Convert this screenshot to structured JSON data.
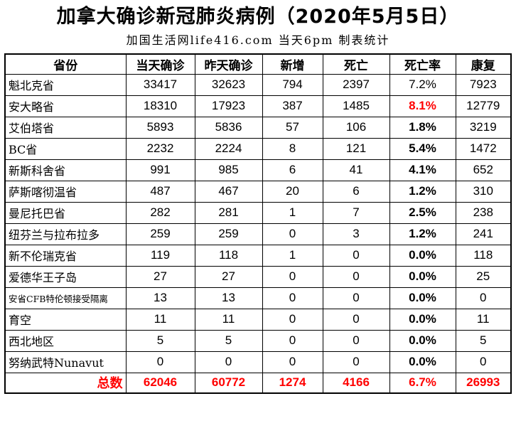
{
  "colors": {
    "accent_red": "#ff0000",
    "border": "#000000",
    "background": "#ffffff"
  },
  "chart_data": {
    "type": "table",
    "title": "加拿大确诊新冠肺炎病例（2020年5月5日）",
    "subtitle": "加国生活网life416.com 当天6pm 制表统计",
    "columns": [
      {
        "key": "province",
        "label": "省份"
      },
      {
        "key": "today",
        "label": "当天确诊"
      },
      {
        "key": "yesterday",
        "label": "昨天确诊"
      },
      {
        "key": "new",
        "label": "新增"
      },
      {
        "key": "deaths",
        "label": "死亡"
      },
      {
        "key": "death_rate",
        "label": "死亡率"
      },
      {
        "key": "recovered",
        "label": "康复"
      }
    ],
    "rows": [
      {
        "province": "魁北克省",
        "today": "33417",
        "yesterday": "32623",
        "new": "794",
        "deaths": "2397",
        "death_rate": "7.2%",
        "recovered": "7923",
        "rate_bold": false,
        "rate_red": false,
        "small_label": false
      },
      {
        "province": "安大略省",
        "today": "18310",
        "yesterday": "17923",
        "new": "387",
        "deaths": "1485",
        "death_rate": "8.1%",
        "recovered": "12779",
        "rate_bold": true,
        "rate_red": true,
        "small_label": false
      },
      {
        "province": "艾伯塔省",
        "today": "5893",
        "yesterday": "5836",
        "new": "57",
        "deaths": "106",
        "death_rate": "1.8%",
        "recovered": "3219",
        "rate_bold": true,
        "rate_red": false,
        "small_label": false
      },
      {
        "province": "BC省",
        "today": "2232",
        "yesterday": "2224",
        "new": "8",
        "deaths": "121",
        "death_rate": "5.4%",
        "recovered": "1472",
        "rate_bold": true,
        "rate_red": false,
        "small_label": false
      },
      {
        "province": "新斯科舍省",
        "today": "991",
        "yesterday": "985",
        "new": "6",
        "deaths": "41",
        "death_rate": "4.1%",
        "recovered": "652",
        "rate_bold": true,
        "rate_red": false,
        "small_label": false
      },
      {
        "province": "萨斯喀彻温省",
        "today": "487",
        "yesterday": "467",
        "new": "20",
        "deaths": "6",
        "death_rate": "1.2%",
        "recovered": "310",
        "rate_bold": true,
        "rate_red": false,
        "small_label": false
      },
      {
        "province": "曼尼托巴省",
        "today": "282",
        "yesterday": "281",
        "new": "1",
        "deaths": "7",
        "death_rate": "2.5%",
        "recovered": "238",
        "rate_bold": true,
        "rate_red": false,
        "small_label": false
      },
      {
        "province": "纽芬兰与拉布拉多",
        "today": "259",
        "yesterday": "259",
        "new": "0",
        "deaths": "3",
        "death_rate": "1.2%",
        "recovered": "241",
        "rate_bold": true,
        "rate_red": false,
        "small_label": false
      },
      {
        "province": "新不伦瑞克省",
        "today": "119",
        "yesterday": "118",
        "new": "1",
        "deaths": "0",
        "death_rate": "0.0%",
        "recovered": "118",
        "rate_bold": true,
        "rate_red": false,
        "small_label": false
      },
      {
        "province": "爱德华王子岛",
        "today": "27",
        "yesterday": "27",
        "new": "0",
        "deaths": "0",
        "death_rate": "0.0%",
        "recovered": "25",
        "rate_bold": true,
        "rate_red": false,
        "small_label": false
      },
      {
        "province": "安省CFB特伦顿接受隔离",
        "today": "13",
        "yesterday": "13",
        "new": "0",
        "deaths": "0",
        "death_rate": "0.0%",
        "recovered": "0",
        "rate_bold": true,
        "rate_red": false,
        "small_label": true
      },
      {
        "province": "育空",
        "today": "11",
        "yesterday": "11",
        "new": "0",
        "deaths": "0",
        "death_rate": "0.0%",
        "recovered": "11",
        "rate_bold": true,
        "rate_red": false,
        "small_label": false
      },
      {
        "province": "西北地区",
        "today": "5",
        "yesterday": "5",
        "new": "0",
        "deaths": "0",
        "death_rate": "0.0%",
        "recovered": "5",
        "rate_bold": true,
        "rate_red": false,
        "small_label": false
      },
      {
        "province": "努纳武特Nunavut",
        "today": "0",
        "yesterday": "0",
        "new": "0",
        "deaths": "0",
        "death_rate": "0.0%",
        "recovered": "0",
        "rate_bold": true,
        "rate_red": false,
        "small_label": false
      }
    ],
    "total": {
      "label": "总数",
      "today": "62046",
      "yesterday": "60772",
      "new": "1274",
      "deaths": "4166",
      "death_rate": "6.7%",
      "recovered": "26993"
    }
  }
}
